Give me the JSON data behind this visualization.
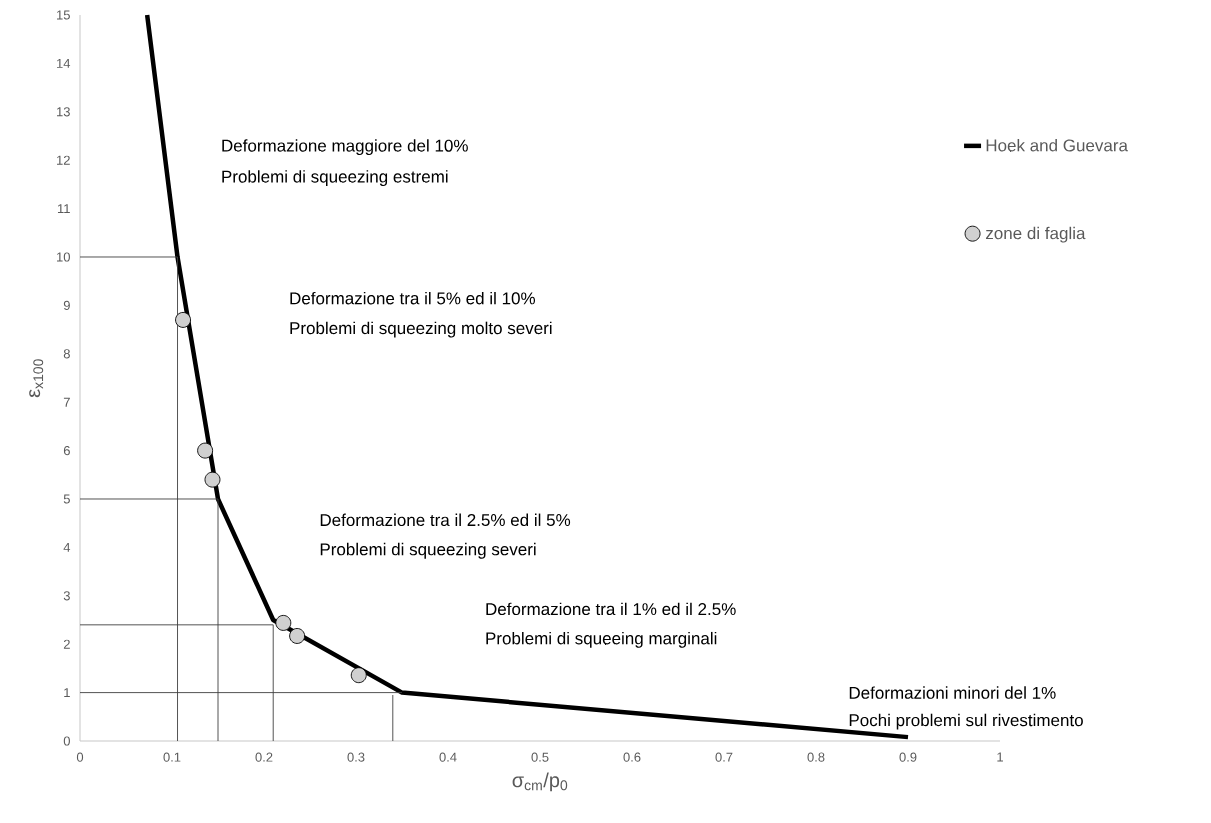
{
  "chart_data": {
    "type": "line",
    "xlabel": "σ$_{cm}$/p$_{0}$",
    "ylabel": "ε$_{x100}$",
    "xlim": [
      0,
      1
    ],
    "ylim": [
      0,
      15
    ],
    "xticks": [
      0,
      0.1,
      0.2,
      0.3,
      0.4,
      0.5,
      0.6,
      0.7,
      0.8,
      0.9,
      1
    ],
    "yticks": [
      0,
      1,
      2,
      3,
      4,
      5,
      6,
      7,
      8,
      9,
      10,
      11,
      12,
      13,
      14,
      15
    ],
    "grid": false,
    "legend": "right",
    "series": [
      {
        "name": "Hoek and Guevara",
        "color": "#000000",
        "marker": "none",
        "x": [
          0.073,
          0.106,
          0.15,
          0.21,
          0.35,
          0.9
        ],
        "values": [
          15,
          10,
          5,
          2.5,
          1,
          0.08
        ]
      },
      {
        "name": "zone di faglia",
        "type": "scatter",
        "color": "#d0d0d0",
        "marker": "circle",
        "x": [
          0.112,
          0.136,
          0.144,
          0.221,
          0.236,
          0.303
        ],
        "values": [
          8.7,
          6.0,
          5.4,
          2.44,
          2.17,
          1.36
        ]
      },
      {
        "color": "#404040",
        "marker": "none",
        "x": [
          0,
          0.106,
          0.106
        ],
        "values": [
          10,
          10,
          0
        ]
      },
      {
        "color": "#404040",
        "marker": "none",
        "x": [
          0,
          0.15,
          0.15
        ],
        "values": [
          5,
          5,
          0
        ]
      },
      {
        "color": "#404040",
        "marker": "none",
        "x": [
          0,
          0.21,
          0.21
        ],
        "values": [
          2.4,
          2.4,
          0
        ]
      },
      {
        "color": "#404040",
        "marker": "none",
        "x": [
          0,
          0.35
        ],
        "values": [
          1,
          1
        ]
      },
      {
        "color": "#404040",
        "marker": "none",
        "x": [
          0.34,
          0.34
        ],
        "values": [
          0.95,
          0
        ]
      }
    ],
    "annotations": [
      "Deformazione maggiore del 10%",
      "Problemi di squeezing estremi",
      "Deformazione tra il 5% ed il 10%",
      "Problemi di squeezing molto severi",
      "Deformazione tra il 2.5% ed il 5%",
      "Problemi di squeezing severi",
      "Deformazione tra il 1% ed il 2.5%",
      "Problemi di squeeing marginali",
      "Deformazioni minori del 1%",
      "Pochi problemi sul rivestimento"
    ]
  }
}
